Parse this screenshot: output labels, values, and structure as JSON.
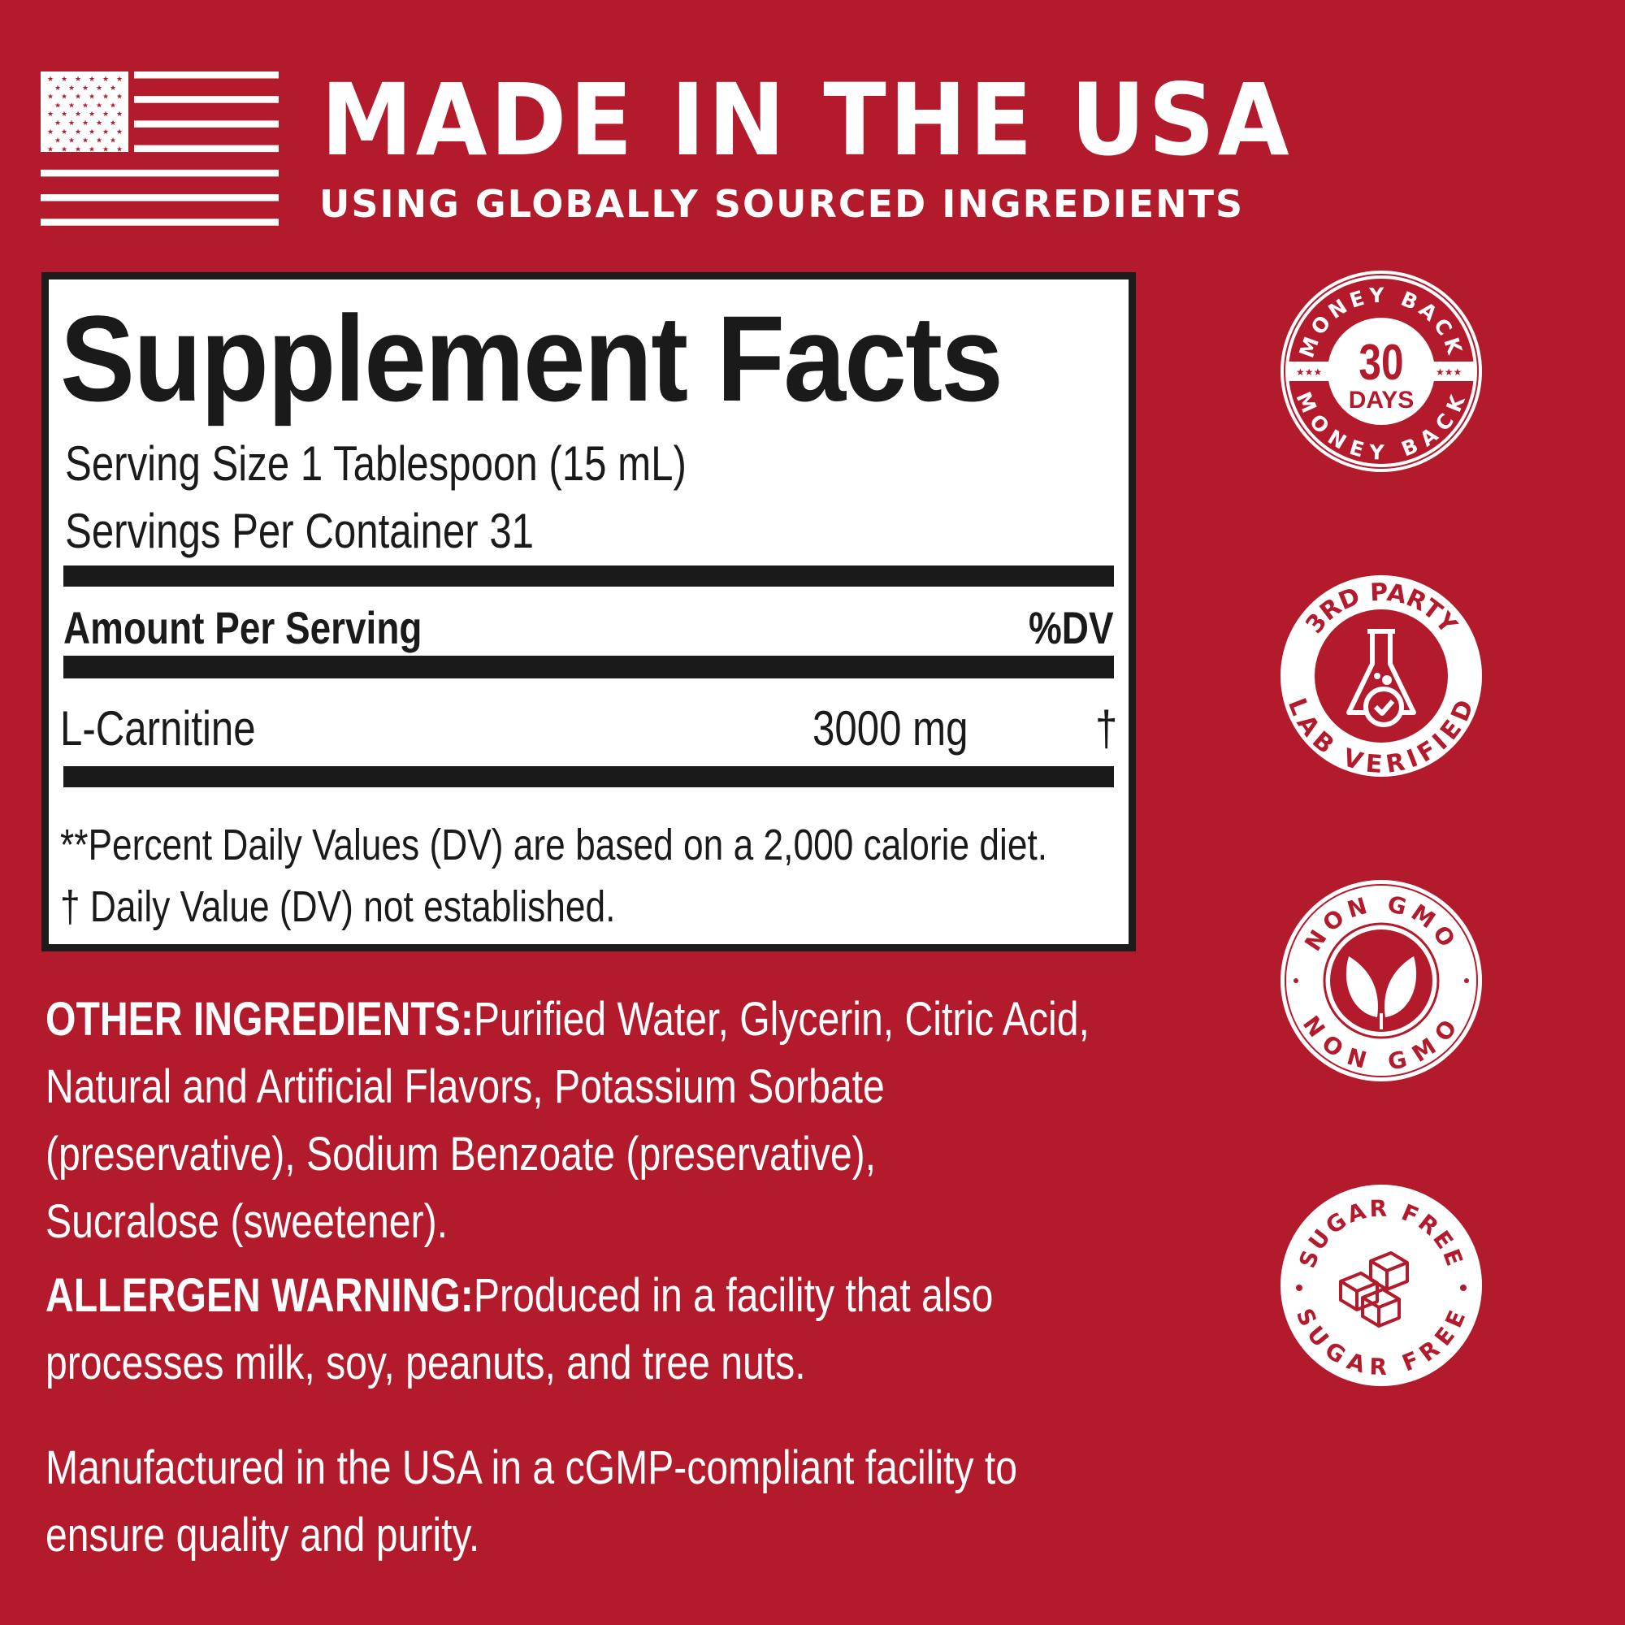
{
  "header": {
    "title": "MADE IN THE USA",
    "subtitle": "USING GLOBALLY SOURCED INGREDIENTS",
    "flag_icon": "us-flag-icon"
  },
  "facts": {
    "title": "Supplement Facts",
    "serving_size": "Serving Size 1 Tablespoon (15 mL)",
    "servings_per_container": "Servings Per Container 31",
    "amount_header": "Amount Per Serving",
    "dv_header": "%DV",
    "rows": [
      {
        "name": "L-Carnitine",
        "amount": "3000 mg",
        "dv": "†"
      }
    ],
    "footnotes": [
      "**Percent Daily Values (DV) are based on a 2,000 calorie diet.",
      "† Daily Value (DV) not established."
    ]
  },
  "other_ingredients": {
    "label": "OTHER INGREDIENTS:",
    "lines": [
      " Purified Water, Glycerin, Citric Acid,",
      "Natural and Artificial Flavors, Potassium Sorbate",
      "(preservative), Sodium Benzoate (preservative),",
      "Sucralose (sweetener)."
    ]
  },
  "allergen": {
    "label": "ALLERGEN WARNING:",
    "lines": [
      " Produced in a facility that also",
      "processes milk, soy, peanuts, and tree nuts."
    ]
  },
  "manufactured": {
    "lines": [
      "Manufactured in the USA in a cGMP-compliant facility to",
      "ensure quality and purity."
    ]
  },
  "badges": [
    {
      "top": "MONEY BACK",
      "bottom": "MONEY BACK",
      "number": "30",
      "unit": "DAYS"
    },
    {
      "top": "3RD PARTY",
      "bottom": "LAB VERIFIED",
      "icon": "flask-check-icon"
    },
    {
      "top": "NON GMO",
      "bottom": "NON GMO",
      "icon": "leaf-icon"
    },
    {
      "top": "SUGAR FREE",
      "bottom": "SUGAR FREE",
      "icon": "sugar-cubes-icon"
    }
  ],
  "colors": {
    "background": "#b31b2c",
    "text": "#ffffff",
    "panel": "#ffffff",
    "ink": "#1a1a1a"
  }
}
